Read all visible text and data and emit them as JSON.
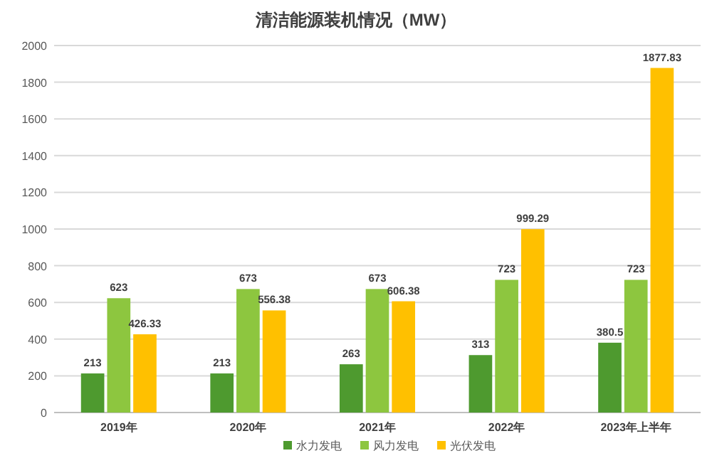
{
  "chart_data": {
    "type": "bar",
    "title": "清洁能源装机情况（MW）",
    "categories": [
      "2019年",
      "2020年",
      "2021年",
      "2022年",
      "2023年上半年"
    ],
    "series": [
      {
        "name": "水力发电",
        "color": "#4e9a2f",
        "values": [
          213,
          213,
          263,
          313,
          380.5
        ]
      },
      {
        "name": "风力发电",
        "color": "#8dc63f",
        "values": [
          623,
          673,
          673,
          723,
          723
        ]
      },
      {
        "name": "光伏发电",
        "color": "#ffc000",
        "values": [
          426.33,
          556.38,
          606.38,
          999.29,
          1877.83
        ]
      }
    ],
    "ylim": [
      0,
      2000
    ],
    "yticks": [
      0,
      200,
      400,
      600,
      800,
      1000,
      1200,
      1400,
      1600,
      1800,
      2000
    ],
    "grid": "y",
    "legend": "bottom",
    "data_labels": true
  }
}
